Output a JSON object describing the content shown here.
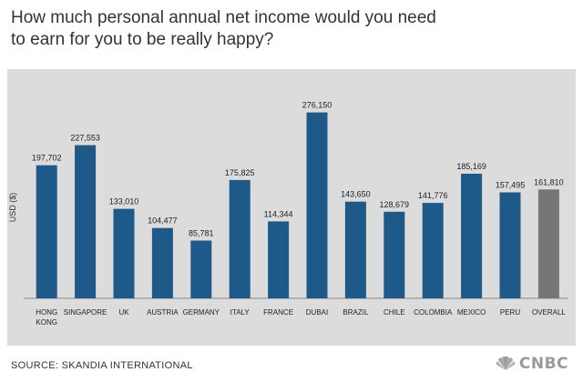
{
  "title_line1": "How much personal annual net income would you need",
  "title_line2": "to earn for you to be really happy?",
  "source": "SOURCE: SKANDIA INTERNATIONAL",
  "logo_text": "CNBC",
  "colors": {
    "bar": "#1d5a8a",
    "overall": "#767676",
    "panel": "#dcdcdc"
  },
  "chart_data": {
    "type": "bar",
    "title": "How much personal annual net income would you need to earn for you to be really happy?",
    "ylabel": "USD ($)",
    "xlabel": "",
    "ylim": [
      0,
      300000
    ],
    "grid": false,
    "categories": [
      "HONG KONG",
      "SINGAPORE",
      "UK",
      "AUSTRIA",
      "GERMANY",
      "ITALY",
      "FRANCE",
      "DUBAI",
      "BRAZIL",
      "CHILE",
      "COLOMBIA",
      "MEXICO",
      "PERU",
      "OVERALL"
    ],
    "category_lines": [
      [
        "HONG",
        "KONG"
      ],
      [
        "SINGAPORE"
      ],
      [
        "UK"
      ],
      [
        "AUSTRIA"
      ],
      [
        "GERMANY"
      ],
      [
        "ITALY"
      ],
      [
        "FRANCE"
      ],
      [
        "DUBAI"
      ],
      [
        "BRAZIL"
      ],
      [
        "CHILE"
      ],
      [
        "COLOMBIA"
      ],
      [
        "MEXICO"
      ],
      [
        "PERU"
      ],
      [
        "OVERALL"
      ]
    ],
    "values": [
      197702,
      227553,
      133010,
      104477,
      85781,
      175825,
      114344,
      276150,
      143650,
      128679,
      141776,
      185169,
      157495,
      161810
    ],
    "value_labels": [
      "197,702",
      "227,553",
      "133,010",
      "104,477",
      "85,781",
      "175,825",
      "114,344",
      "276,150",
      "143,650",
      "128,679",
      "141,776",
      "185,169",
      "157,495",
      "161,810"
    ],
    "highlight": "OVERALL"
  }
}
